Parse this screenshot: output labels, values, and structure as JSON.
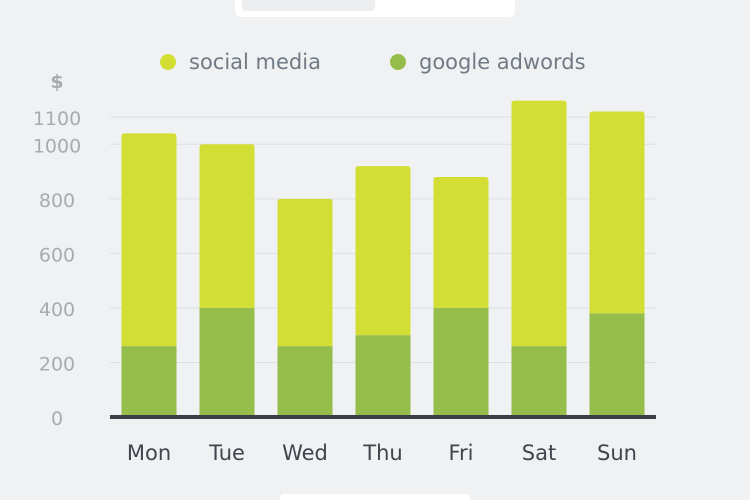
{
  "colors": {
    "background": "#f0f1f3",
    "social_media": "#d2de34",
    "google_adwords": "#95bd4c",
    "baseline": "#3a3f47",
    "grid": "#dcdfe3",
    "tick_text": "#a7abb1",
    "legend_text": "#6f7a84",
    "category_text": "#3e454d"
  },
  "chart_data": {
    "type": "bar",
    "stacked": true,
    "ylabel": "$",
    "ylim": [
      0,
      1100
    ],
    "yticks": [
      0,
      200,
      400,
      600,
      800,
      1000,
      1100
    ],
    "grid": true,
    "legend_position": "top",
    "categories": [
      "Mon",
      "Tue",
      "Wed",
      "Thu",
      "Fri",
      "Sat",
      "Sun"
    ],
    "series": [
      {
        "name": "google adwords",
        "color": "#95bd4c",
        "values": [
          260,
          400,
          260,
          300,
          400,
          260,
          380
        ]
      },
      {
        "name": "social media",
        "color": "#d2de34",
        "values": [
          780,
          600,
          540,
          620,
          480,
          900,
          740
        ]
      }
    ]
  }
}
